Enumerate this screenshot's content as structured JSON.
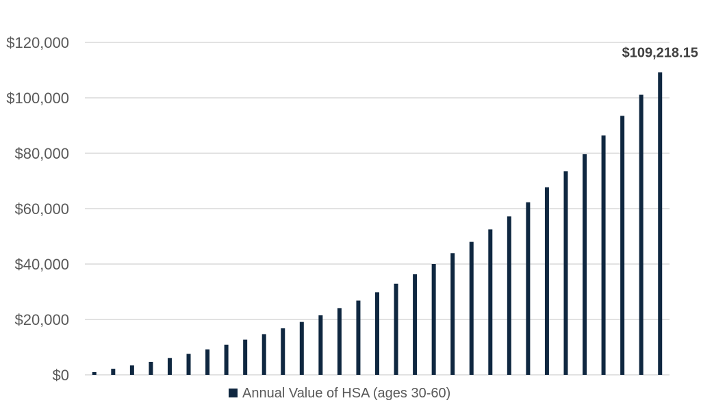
{
  "chart_data": {
    "type": "bar",
    "title": "",
    "xlabel": "",
    "ylabel": "",
    "ylim": [
      0,
      120000
    ],
    "y_ticks": [
      {
        "value": 0,
        "label": "$0"
      },
      {
        "value": 20000,
        "label": "$20,000"
      },
      {
        "value": 40000,
        "label": "$40,000"
      },
      {
        "value": 60000,
        "label": "$60,000"
      },
      {
        "value": 80000,
        "label": "$80,000"
      },
      {
        "value": 100000,
        "label": "$100,000"
      },
      {
        "value": 120000,
        "label": "$120,000"
      }
    ],
    "grid": true,
    "legend_position": "bottom",
    "series": [
      {
        "name": "Annual Value of HSA (ages 30-60)",
        "color": "#0f2740",
        "values": [
          1000,
          2200,
          3400,
          4700,
          6100,
          7600,
          9200,
          10900,
          12700,
          14700,
          16800,
          19100,
          21500,
          24100,
          26800,
          29800,
          32900,
          36300,
          40000,
          43900,
          48000,
          52500,
          57200,
          62300,
          67700,
          73500,
          79700,
          86400,
          93500,
          101100,
          109218.15
        ]
      }
    ],
    "annotations": [
      {
        "label": "$109,218.15",
        "series_index": 0,
        "point_index": 30
      }
    ]
  }
}
